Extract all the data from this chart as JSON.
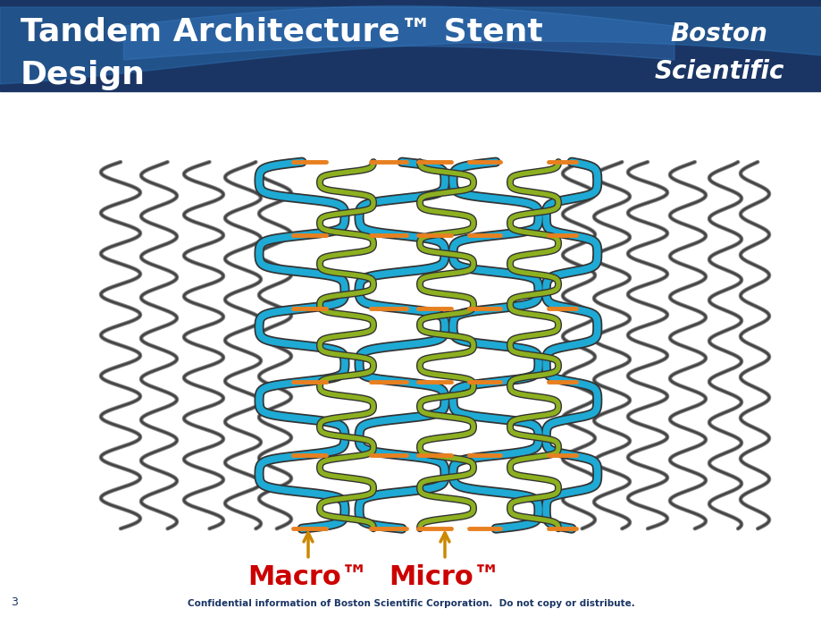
{
  "title_line1": "Tandem Architecture™ Stent",
  "title_line2": "Design",
  "header_color": "#1a3564",
  "header_wave_color": "#2060a0",
  "title_color": "#ffffff",
  "title_fontsize": 26,
  "logo_line1": "Boston",
  "logo_line2": "Scientific",
  "logo_fontsize": 20,
  "macro_label": "Macro™",
  "micro_label": "Micro™",
  "label_color": "#cc0000",
  "label_fontsize": 22,
  "arrow_color": "#cc8800",
  "footer_text": "Confidential information of Boston Scientific Corporation.  Do not copy or distribute.",
  "footer_color": "#1a3564",
  "page_num": "3",
  "bg_color": "#ffffff",
  "wire_gray": "#444444",
  "wire_blue": "#1eaad4",
  "wire_green": "#8db020",
  "wire_orange": "#e88020",
  "lw_gray": 1.8,
  "lw_blue": 5.5,
  "lw_green": 3.8,
  "lw_orange": 3.5,
  "n_cycles_gray": 9,
  "n_cycles_blue": 5,
  "n_cycles_green": 9
}
